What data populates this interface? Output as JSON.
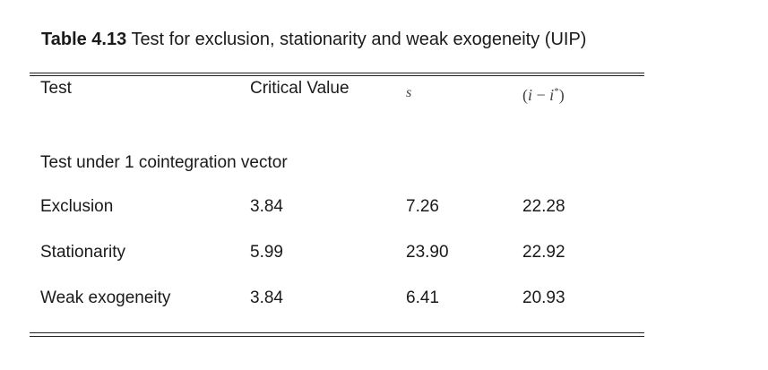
{
  "caption": {
    "number": "Table 4.13",
    "text": "Test for exclusion, stationarity and weak exogeneity (UIP)"
  },
  "table": {
    "headers": {
      "test": "Test",
      "critical_value": "Critical Value",
      "s": "s",
      "diff_open": "(",
      "diff_i": "i",
      "diff_minus": " − ",
      "diff_istar": "i",
      "diff_star": "*",
      "diff_close": ")"
    },
    "section_label": "Test under 1 cointegration vector",
    "rows": [
      {
        "test": "Exclusion",
        "critical_value": "3.84",
        "s": "7.26",
        "diff": "22.28"
      },
      {
        "test": "Stationarity",
        "critical_value": "5.99",
        "s": "23.90",
        "diff": "22.92"
      },
      {
        "test": "Weak exogeneity",
        "critical_value": "3.84",
        "s": "6.41",
        "diff": "20.93"
      }
    ]
  }
}
